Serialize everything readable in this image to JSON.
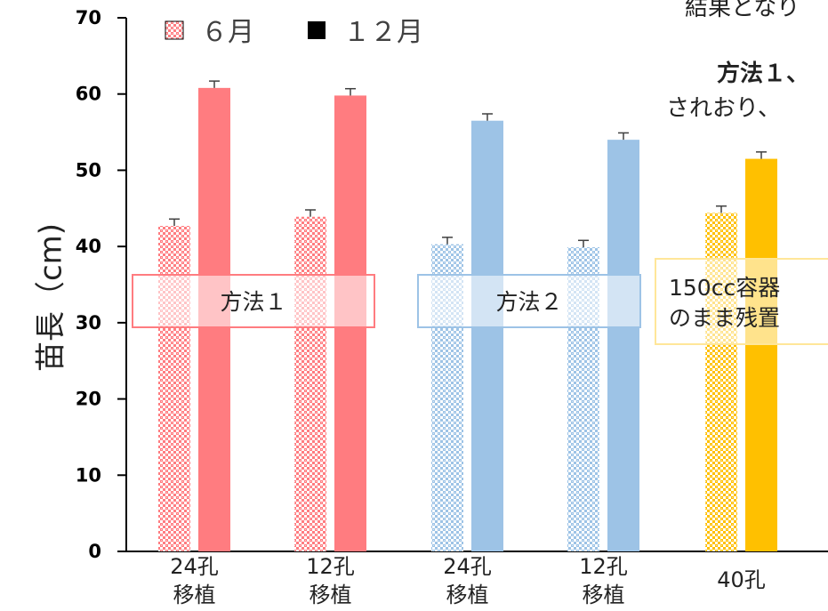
{
  "chart_data": {
    "type": "bar",
    "ylabel": "苗長（cm)",
    "ylim": [
      0,
      70
    ],
    "yticks": [
      0,
      10,
      20,
      30,
      40,
      50,
      60,
      70
    ],
    "legend": {
      "placement": "top-left",
      "items": [
        {
          "symbol": "▩",
          "label": "６月"
        },
        {
          "symbol": "■",
          "label": "１２月"
        }
      ]
    },
    "categories": [
      {
        "label_line1": "24孔",
        "label_line2": "移植"
      },
      {
        "label_line1": "12孔",
        "label_line2": "移植"
      },
      {
        "label_line1": "24孔",
        "label_line2": "移植"
      },
      {
        "label_line1": "12孔",
        "label_line2": "移植"
      },
      {
        "label_line1": "40孔",
        "label_line2": ""
      }
    ],
    "series": [
      {
        "name": "６月",
        "values": [
          42.7,
          43.9,
          40.3,
          39.9,
          44.4
        ],
        "errors": [
          0.9,
          0.9,
          0.9,
          0.9,
          0.9
        ]
      },
      {
        "name": "１２月",
        "values": [
          60.8,
          59.8,
          56.5,
          54.0,
          51.5
        ],
        "errors": [
          0.9,
          0.9,
          0.9,
          0.9,
          0.9
        ]
      }
    ],
    "bar_colors": [
      "#ff7c80",
      "#ff7c80",
      "#9dc3e6",
      "#9dc3e6",
      "#ffc000"
    ],
    "group_boxes": [
      {
        "label_lines": [
          "方法１"
        ],
        "color": "#ff7c80"
      },
      {
        "label_lines": [
          "方法２"
        ],
        "color": "#9dc3e6"
      },
      {
        "label_lines": [
          "150cc容器",
          "のまま残置"
        ],
        "color": "#ffe699"
      }
    ]
  },
  "background_text": {
    "line1": "結果となり",
    "line2_bold": "方法１、",
    "line3": "されおり、"
  }
}
